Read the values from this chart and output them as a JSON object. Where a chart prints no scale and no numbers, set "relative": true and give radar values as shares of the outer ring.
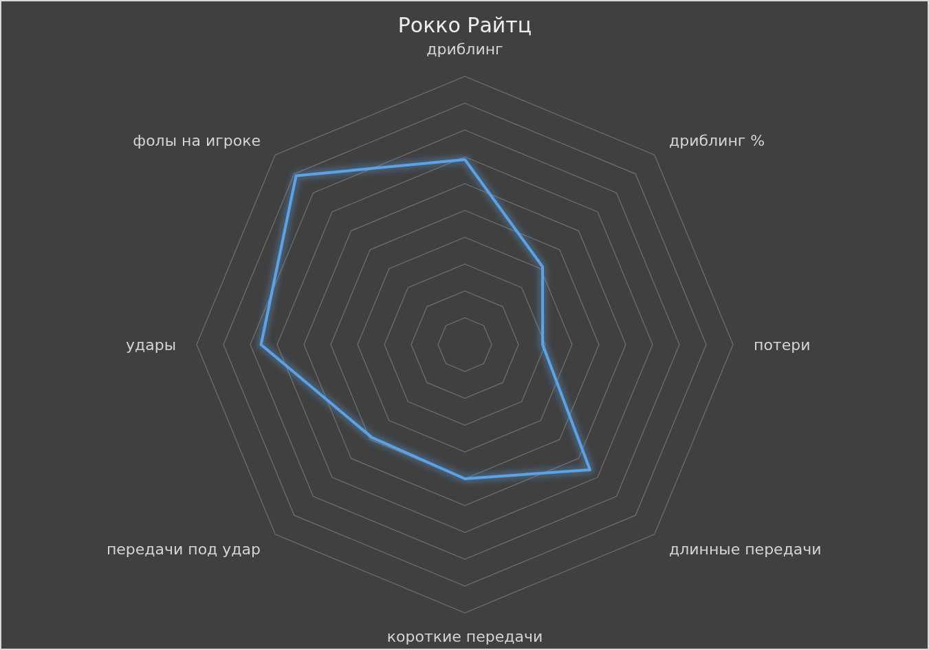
{
  "chart_data": {
    "type": "radar",
    "title": "Рокко Райтц",
    "relative": true,
    "grid": true,
    "categories": [
      "дриблинг",
      "дриблинг %",
      "потери",
      "длинные передачи",
      "короткие передачи",
      "передачи под удар",
      "удары",
      "фолы на игроке"
    ],
    "series": [
      {
        "color": "#5ba3e6",
        "values": [
          0.69,
          0.41,
          0.29,
          0.66,
          0.5,
          0.49,
          0.76,
          0.89
        ]
      }
    ]
  }
}
